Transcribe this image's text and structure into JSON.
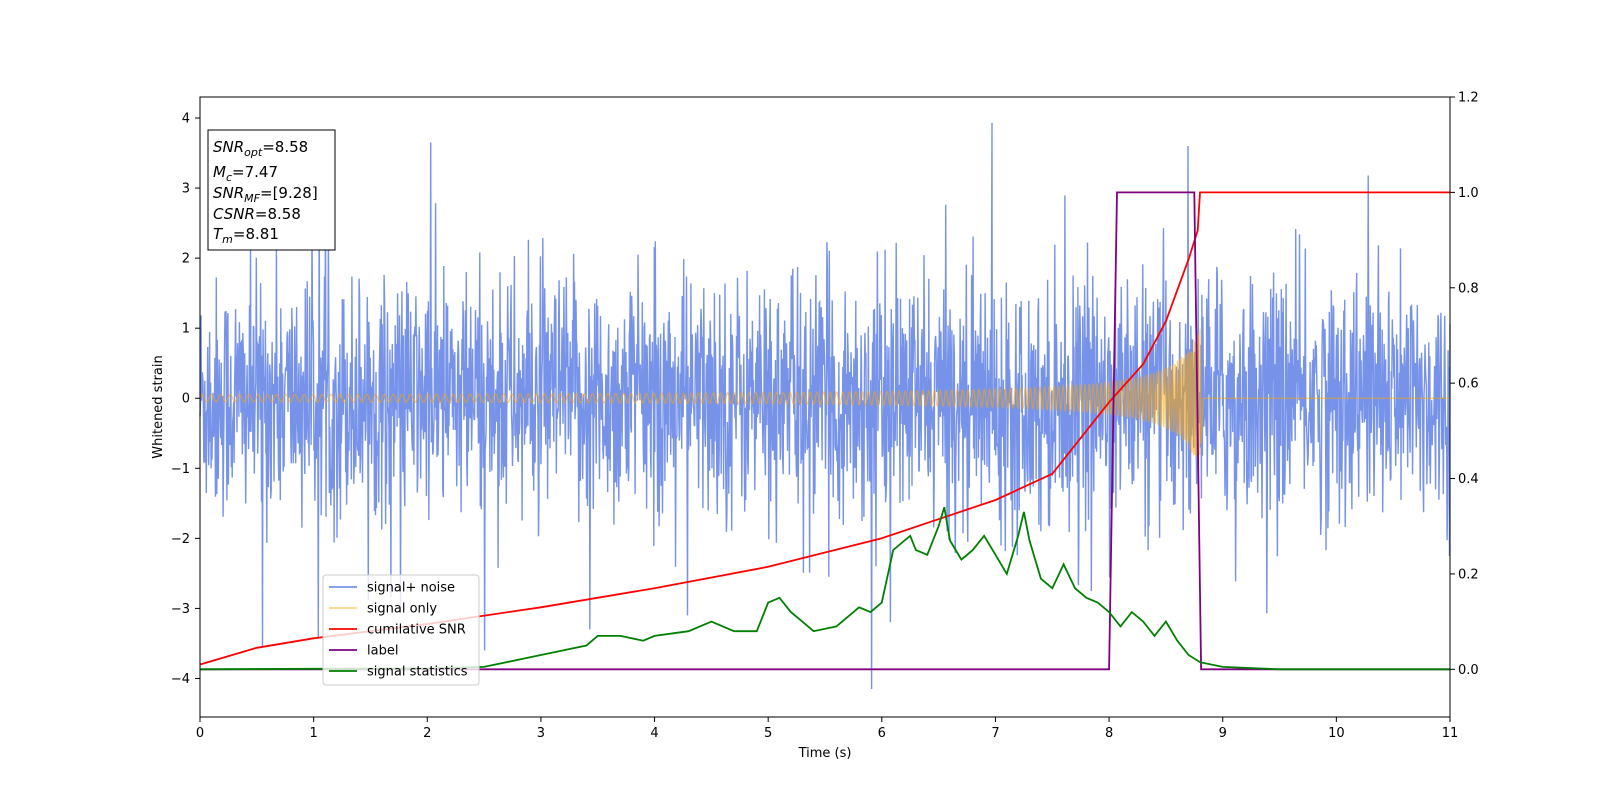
{
  "chart_data": {
    "type": "line",
    "xlabel": "Time (s)",
    "ylabel": "Whitened strain",
    "xlim": [
      0,
      11
    ],
    "ylim": [
      -4.55,
      4.3
    ],
    "y2lim": [
      -0.1,
      1.2
    ],
    "xticks": [
      "0",
      "1",
      "2",
      "3",
      "4",
      "5",
      "6",
      "7",
      "8",
      "9",
      "10",
      "11"
    ],
    "yticks": [
      "4",
      "3",
      "2",
      "1",
      "0",
      "−1",
      "−2",
      "−3",
      "−4"
    ],
    "y2ticks": [
      "1.2",
      "1.0",
      "0.8",
      "0.6",
      "0.4",
      "0.2",
      "0.0"
    ],
    "grid": false,
    "legend_position": "lower-left",
    "series": [
      {
        "name": "signal+ noise",
        "axis": "left",
        "color": "#4169e1",
        "description_values": {
          "typical_range": [
            -2.5,
            2.5
          ],
          "max": 3.93,
          "min": -4.15
        }
      },
      {
        "name": "signal only",
        "axis": "left",
        "color": "#ffa500",
        "chirp": {
          "start": 0,
          "merger": 8.8,
          "end": 11,
          "amp_start": 0.03,
          "amp_merger": 1.05
        }
      },
      {
        "name": "cumilative SNR",
        "axis": "right",
        "color": "#ff0000",
        "x": [
          0,
          0.5,
          1,
          2,
          3,
          4,
          5,
          6,
          7,
          7.5,
          8,
          8.3,
          8.5,
          8.7,
          8.78,
          8.8,
          11
        ],
        "y": [
          0.01,
          0.045,
          0.065,
          0.095,
          0.13,
          0.17,
          0.215,
          0.275,
          0.355,
          0.41,
          0.56,
          0.64,
          0.73,
          0.86,
          0.92,
          1.0,
          1.0
        ]
      },
      {
        "name": "label",
        "axis": "right",
        "color": "#800080",
        "x": [
          0,
          8.0,
          8.07,
          8.75,
          8.81,
          11
        ],
        "y": [
          0,
          0,
          1,
          1,
          0,
          0
        ]
      },
      {
        "name": "signal statistics",
        "axis": "right",
        "color": "#008000",
        "x": [
          0,
          1,
          2,
          2.5,
          2.9,
          3.1,
          3.4,
          3.5,
          3.7,
          3.9,
          4.0,
          4.3,
          4.5,
          4.7,
          4.9,
          5.0,
          5.1,
          5.2,
          5.3,
          5.4,
          5.6,
          5.8,
          5.9,
          6.0,
          6.1,
          6.2,
          6.25,
          6.3,
          6.4,
          6.5,
          6.55,
          6.6,
          6.7,
          6.8,
          6.9,
          7.0,
          7.1,
          7.2,
          7.25,
          7.3,
          7.4,
          7.5,
          7.6,
          7.7,
          7.8,
          7.9,
          8.0,
          8.1,
          8.2,
          8.3,
          8.4,
          8.5,
          8.6,
          8.7,
          8.8,
          9.0,
          9.5,
          10,
          11
        ],
        "y": [
          0.0,
          0.001,
          0.002,
          0.005,
          0.025,
          0.035,
          0.05,
          0.07,
          0.07,
          0.06,
          0.07,
          0.08,
          0.1,
          0.08,
          0.08,
          0.14,
          0.15,
          0.12,
          0.1,
          0.08,
          0.09,
          0.13,
          0.12,
          0.14,
          0.25,
          0.27,
          0.28,
          0.25,
          0.24,
          0.3,
          0.34,
          0.27,
          0.23,
          0.25,
          0.28,
          0.24,
          0.2,
          0.28,
          0.33,
          0.27,
          0.19,
          0.17,
          0.22,
          0.17,
          0.15,
          0.14,
          0.12,
          0.09,
          0.12,
          0.1,
          0.07,
          0.1,
          0.06,
          0.03,
          0.015,
          0.005,
          0.0,
          0.0,
          0.0
        ]
      }
    ],
    "annotation_lines": [
      {
        "sym": "SNR",
        "sub": "opt",
        "value": "=8.58"
      },
      {
        "sym": "M",
        "sub": "c",
        "value": "=7.47"
      },
      {
        "sym": "SNR",
        "sub": "MF",
        "value": "=[9.28]"
      },
      {
        "sym": "CSNR",
        "sub": "",
        "value": "=8.58"
      },
      {
        "sym": "T",
        "sub": "m",
        "value": "=8.81"
      }
    ]
  }
}
